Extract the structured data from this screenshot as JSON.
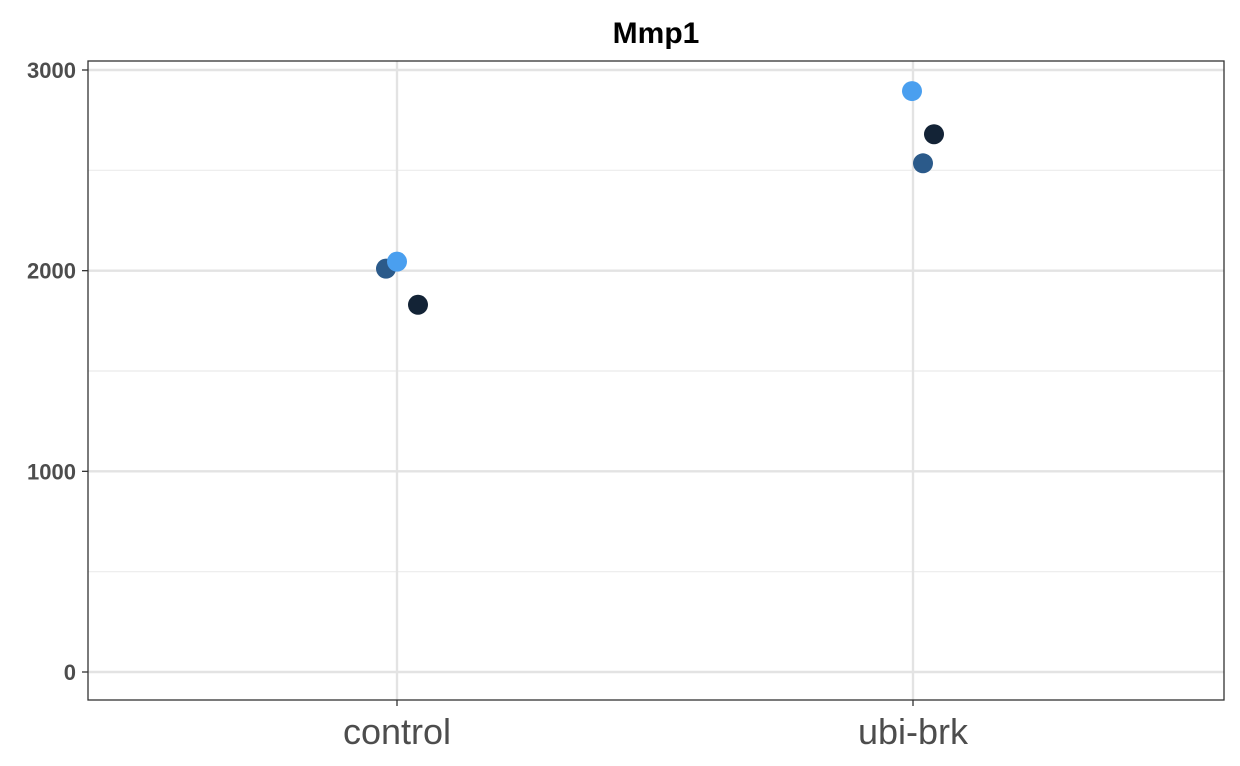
{
  "chart_data": {
    "type": "scatter",
    "title": "Mmp1",
    "xlabel": "",
    "ylabel": "",
    "categories": [
      "control",
      "ubi-brk"
    ],
    "ylim": [
      0,
      3000
    ],
    "yticks": [
      0,
      1000,
      2000,
      3000
    ],
    "ytick_labels": [
      "0",
      "1000",
      "2000",
      "3000"
    ],
    "grid": true,
    "legend": "none",
    "series": [
      {
        "color": "#2b5a8a",
        "points": [
          {
            "x": "control",
            "y": 2010
          },
          {
            "x": "ubi-brk",
            "y": 2535
          }
        ]
      },
      {
        "color": "#4a9fef",
        "points": [
          {
            "x": "control",
            "y": 2045
          },
          {
            "x": "ubi-brk",
            "y": 2895
          }
        ]
      },
      {
        "color": "#132336",
        "points": [
          {
            "x": "control",
            "y": 1830
          },
          {
            "x": "ubi-brk",
            "y": 2680
          }
        ]
      }
    ]
  }
}
